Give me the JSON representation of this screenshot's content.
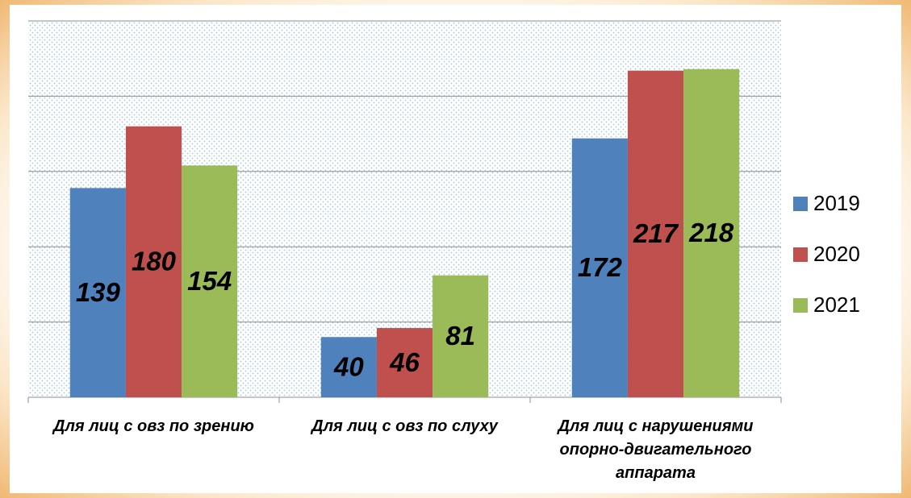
{
  "chart_data": {
    "type": "bar",
    "categories": [
      "Для лиц с овз по зрению",
      "Для лиц с овз по слуху",
      "Для лиц с нарушениями опорно-двигательного аппарата"
    ],
    "series": [
      {
        "name": "2019",
        "color": "#4f81bd",
        "values": [
          139,
          40,
          172
        ]
      },
      {
        "name": "2020",
        "color": "#c0504d",
        "values": [
          180,
          46,
          217
        ]
      },
      {
        "name": "2021",
        "color": "#9bbb59",
        "values": [
          154,
          81,
          218
        ]
      }
    ],
    "ylim": [
      0,
      250
    ],
    "yticks": [
      0,
      50,
      100,
      150,
      200,
      250
    ],
    "grid": true,
    "legend": "right"
  }
}
